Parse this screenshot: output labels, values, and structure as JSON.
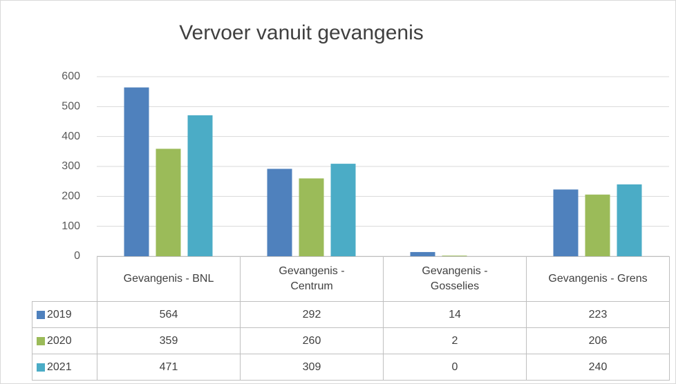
{
  "chart_data": {
    "type": "bar",
    "title": "Vervoer vanuit gevangenis",
    "categories": [
      "Gevangenis - BNL",
      "Gevangenis - Centrum",
      "Gevangenis - Gosselies",
      "Gevangenis - Grens"
    ],
    "series": [
      {
        "name": "2019",
        "color": "#4f81bd",
        "values": [
          564,
          292,
          14,
          223
        ]
      },
      {
        "name": "2020",
        "color": "#9bbb59",
        "values": [
          359,
          260,
          2,
          206
        ]
      },
      {
        "name": "2021",
        "color": "#4bacc6",
        "values": [
          471,
          309,
          0,
          240
        ]
      }
    ],
    "ylim": [
      0,
      600
    ],
    "yticks": [
      0,
      100,
      200,
      300,
      400,
      500,
      600
    ],
    "grid": true,
    "data_table": true
  }
}
